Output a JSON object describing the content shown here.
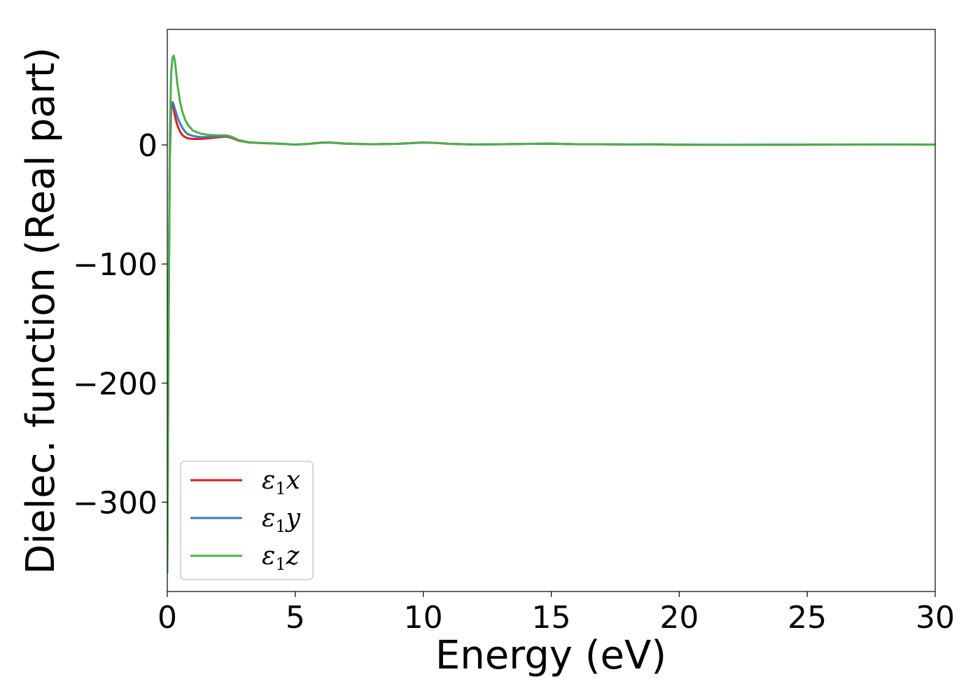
{
  "chart_data": {
    "type": "line",
    "xlabel": "Energy (eV)",
    "ylabel": "Dielec. function (Real part)",
    "xlim": [
      0,
      30
    ],
    "ylim": [
      -375,
      97
    ],
    "xticks": [
      0,
      5,
      10,
      15,
      20,
      25,
      30
    ],
    "xtick_labels": [
      "0",
      "5",
      "10",
      "15",
      "20",
      "25",
      "30"
    ],
    "yticks": [
      0,
      -100,
      -200,
      -300
    ],
    "ytick_labels": [
      "0",
      "−100",
      "−200",
      "−300"
    ],
    "grid": false,
    "legend_position": "bottom-left",
    "series": [
      {
        "name": "ε1x",
        "legend_main": "ε",
        "legend_sub": "1",
        "legend_var": "x",
        "color": "#e41a1c",
        "x": [
          0.0,
          0.05,
          0.1,
          0.15,
          0.2,
          0.25,
          0.3,
          0.4,
          0.5,
          0.6,
          0.7,
          0.8,
          1.0,
          1.3,
          1.6,
          2.0,
          2.3,
          2.5,
          2.8,
          3.2,
          3.6,
          4.0,
          4.5,
          5.0,
          5.5,
          6.0,
          6.3,
          7.0,
          8.0,
          9.0,
          10.0,
          10.5,
          11.0,
          12.0,
          13.0,
          14.0,
          15.0,
          16.0,
          17.0,
          18.0,
          19.0,
          20.0,
          22.0,
          24.0,
          26.0,
          28.0,
          30.0
        ],
        "y": [
          -350,
          -150,
          -10,
          30,
          34,
          30,
          24,
          16,
          11,
          8,
          6.5,
          5.5,
          5.0,
          5.0,
          5.5,
          6.5,
          7.0,
          6.0,
          3.5,
          2.0,
          1.6,
          1.3,
          0.8,
          0.2,
          0.8,
          1.8,
          2.0,
          1.0,
          0.5,
          0.9,
          2.0,
          1.6,
          0.9,
          0.3,
          0.5,
          0.8,
          1.0,
          0.5,
          0.5,
          0.3,
          0.4,
          0.1,
          0.0,
          0.1,
          0.2,
          0.3,
          0.2
        ]
      },
      {
        "name": "ε1y",
        "legend_main": "ε",
        "legend_sub": "1",
        "legend_var": "y",
        "color": "#377eb8",
        "x": [
          0.0,
          0.05,
          0.1,
          0.15,
          0.2,
          0.25,
          0.3,
          0.4,
          0.5,
          0.6,
          0.7,
          0.8,
          1.0,
          1.3,
          1.6,
          2.0,
          2.3,
          2.5,
          2.8,
          3.2,
          3.6,
          4.0,
          4.5,
          5.0,
          5.5,
          6.0,
          6.3,
          7.0,
          8.0,
          9.0,
          10.0,
          10.5,
          11.0,
          12.0,
          13.0,
          14.0,
          15.0,
          16.0,
          17.0,
          18.0,
          19.0,
          20.0,
          22.0,
          24.0,
          26.0,
          28.0,
          30.0
        ],
        "y": [
          -340,
          -140,
          -5,
          33,
          36,
          34,
          30,
          23,
          18,
          14,
          11,
          9,
          7.5,
          6.5,
          6.8,
          7.2,
          7.4,
          6.5,
          4.0,
          2.2,
          1.7,
          1.4,
          0.9,
          0.3,
          0.9,
          1.9,
          2.1,
          1.1,
          0.6,
          1.0,
          2.1,
          1.7,
          1.0,
          0.4,
          0.6,
          0.9,
          1.1,
          0.6,
          0.6,
          0.4,
          0.5,
          0.2,
          0.1,
          0.2,
          0.3,
          0.4,
          0.3
        ]
      },
      {
        "name": "ε1z",
        "legend_main": "ε",
        "legend_sub": "1",
        "legend_var": "z",
        "color": "#4daf4a",
        "x": [
          0.0,
          0.05,
          0.1,
          0.15,
          0.2,
          0.25,
          0.3,
          0.35,
          0.4,
          0.5,
          0.6,
          0.7,
          0.8,
          1.0,
          1.3,
          1.6,
          2.0,
          2.3,
          2.5,
          2.8,
          3.2,
          3.6,
          4.0,
          4.5,
          5.0,
          5.5,
          6.0,
          6.3,
          7.0,
          8.0,
          9.0,
          10.0,
          10.5,
          11.0,
          12.0,
          13.0,
          14.0,
          15.0,
          16.0,
          17.0,
          18.0,
          19.0,
          20.0,
          22.0,
          24.0,
          26.0,
          28.0,
          30.0
        ],
        "y": [
          -360,
          -160,
          10,
          60,
          73,
          75,
          70,
          60,
          50,
          36,
          27,
          21,
          17,
          12,
          9.5,
          8.5,
          8.0,
          8.0,
          7.0,
          4.0,
          2.2,
          1.7,
          1.4,
          0.9,
          0.3,
          0.9,
          1.9,
          2.1,
          1.1,
          0.6,
          1.0,
          2.1,
          1.7,
          1.0,
          0.4,
          0.6,
          0.9,
          1.1,
          0.6,
          0.6,
          0.4,
          0.5,
          0.2,
          0.1,
          0.2,
          0.3,
          0.4,
          0.3
        ]
      }
    ]
  }
}
